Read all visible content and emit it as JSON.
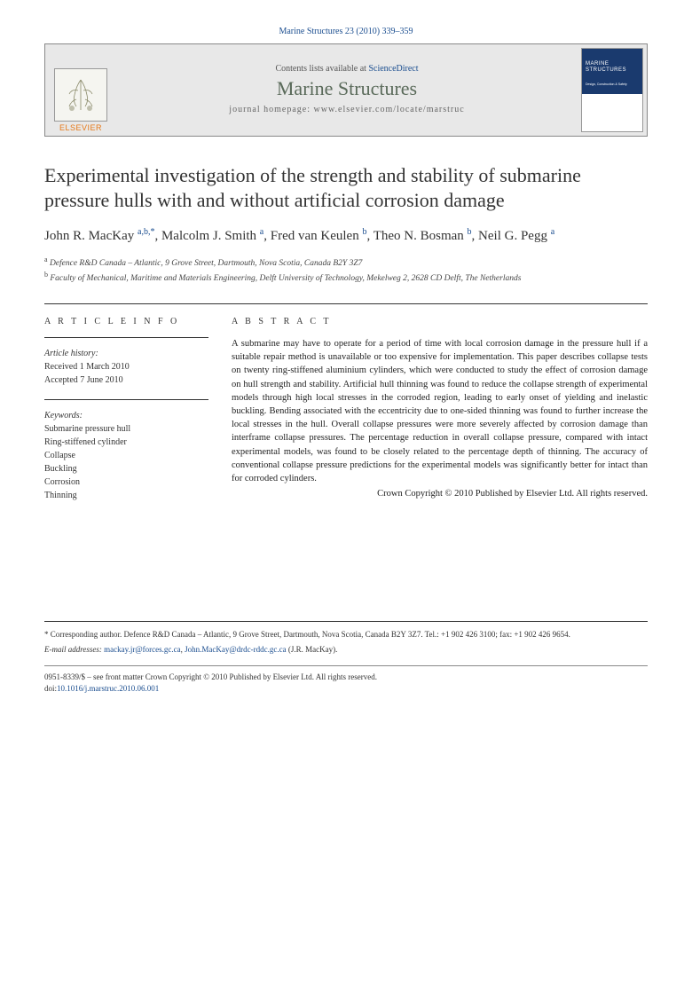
{
  "citation": "Marine Structures 23 (2010) 339–359",
  "banner": {
    "publisher": "ELSEVIER",
    "contents_prefix": "Contents lists available at ",
    "contents_link": "ScienceDirect",
    "journal": "Marine Structures",
    "homepage_prefix": "journal homepage: ",
    "homepage_url": "www.elsevier.com/locate/marstruc",
    "cover_title": "MARINE STRUCTURES",
    "cover_sub": "Design, Construction & Safety"
  },
  "title": "Experimental investigation of the strength and stability of submarine pressure hulls with and without artificial corrosion damage",
  "authors": [
    {
      "name": "John R. MacKay",
      "affil": "a,b,",
      "corr": true
    },
    {
      "name": "Malcolm J. Smith",
      "affil": "a",
      "corr": false
    },
    {
      "name": "Fred van Keulen",
      "affil": "b",
      "corr": false
    },
    {
      "name": "Theo N. Bosman",
      "affil": "b",
      "corr": false
    },
    {
      "name": "Neil G. Pegg",
      "affil": "a",
      "corr": false
    }
  ],
  "affiliations": {
    "a": "Defence R&D Canada – Atlantic, 9 Grove Street, Dartmouth, Nova Scotia, Canada B2Y 3Z7",
    "b": "Faculty of Mechanical, Maritime and Materials Engineering, Delft University of Technology, Mekelweg 2, 2628 CD Delft, The Netherlands"
  },
  "article_info": {
    "heading": "A R T I C L E   I N F O",
    "history_label": "Article history:",
    "received": "Received 1 March 2010",
    "accepted": "Accepted 7 June 2010",
    "keywords_label": "Keywords:",
    "keywords": [
      "Submarine pressure hull",
      "Ring-stiffened cylinder",
      "Collapse",
      "Buckling",
      "Corrosion",
      "Thinning"
    ]
  },
  "abstract": {
    "heading": "A B S T R A C T",
    "text": "A submarine may have to operate for a period of time with local corrosion damage in the pressure hull if a suitable repair method is unavailable or too expensive for implementation. This paper describes collapse tests on twenty ring-stiffened aluminium cylinders, which were conducted to study the effect of corrosion damage on hull strength and stability. Artificial hull thinning was found to reduce the collapse strength of experimental models through high local stresses in the corroded region, leading to early onset of yielding and inelastic buckling. Bending associated with the eccentricity due to one-sided thinning was found to further increase the local stresses in the hull. Overall collapse pressures were more severely affected by corrosion damage than interframe collapse pressures. The percentage reduction in overall collapse pressure, compared with intact experimental models, was found to be closely related to the percentage depth of thinning. The accuracy of conventional collapse pressure predictions for the experimental models was significantly better for intact than for corroded cylinders.",
    "copyright": "Crown Copyright © 2010 Published by Elsevier Ltd. All rights reserved."
  },
  "footer": {
    "corr_label": "* Corresponding author. ",
    "corr_text": "Defence R&D Canada – Atlantic, 9 Grove Street, Dartmouth, Nova Scotia, Canada B2Y 3Z7. Tel.: +1 902 426 3100; fax: +1 902 426 9654.",
    "email_label": "E-mail addresses: ",
    "emails": [
      "mackay.jr@forces.gc.ca",
      "John.MacKay@drdc-rddc.gc.ca"
    ],
    "email_attrib": " (J.R. MacKay).",
    "issn": "0951-8339/$ – see front matter Crown Copyright © 2010 Published by Elsevier Ltd. All rights reserved.",
    "doi_label": "doi:",
    "doi": "10.1016/j.marstruc.2010.06.001"
  },
  "colors": {
    "link": "#1a4d8f",
    "publisher": "#e67817",
    "journal_name": "#5a6a5a"
  }
}
